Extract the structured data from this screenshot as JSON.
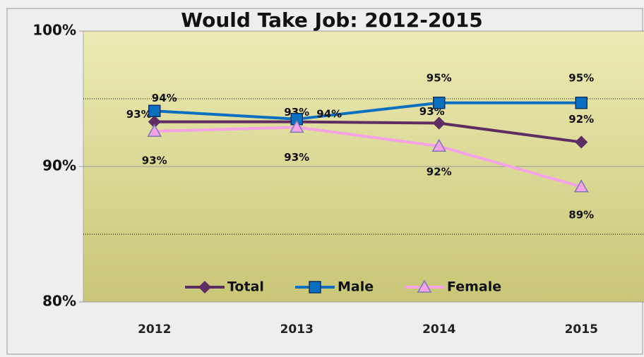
{
  "chart_data": {
    "type": "line",
    "title": "Would Take Job: 2012-2015",
    "categories": [
      "2012",
      "2013",
      "2014",
      "2015"
    ],
    "series": [
      {
        "name": "Total",
        "color": "#5e2d62",
        "marker": "diamond",
        "values": [
          93.3,
          93.3,
          93.2,
          91.8
        ],
        "value_labels": [
          "93%",
          "93%",
          "93%",
          "92%"
        ]
      },
      {
        "name": "Male",
        "color": "#0a6fbf",
        "marker": "square",
        "values": [
          94.1,
          93.5,
          94.7,
          94.7
        ],
        "value_labels": [
          "94%",
          "94%",
          "95%",
          "95%"
        ]
      },
      {
        "name": "Female",
        "color": "#f4a3e6",
        "marker": "triangle",
        "values": [
          92.6,
          92.9,
          91.5,
          88.5
        ],
        "value_labels": [
          "93%",
          "93%",
          "92%",
          "89%"
        ]
      }
    ],
    "ylim": [
      80,
      100
    ],
    "yticks": [
      {
        "value": 80,
        "label": "80%"
      },
      {
        "value": 90,
        "label": "90%"
      },
      {
        "value": 100,
        "label": "100%"
      }
    ],
    "minor_yticks": [
      85,
      95
    ],
    "grid": true,
    "legend": "bottom"
  }
}
